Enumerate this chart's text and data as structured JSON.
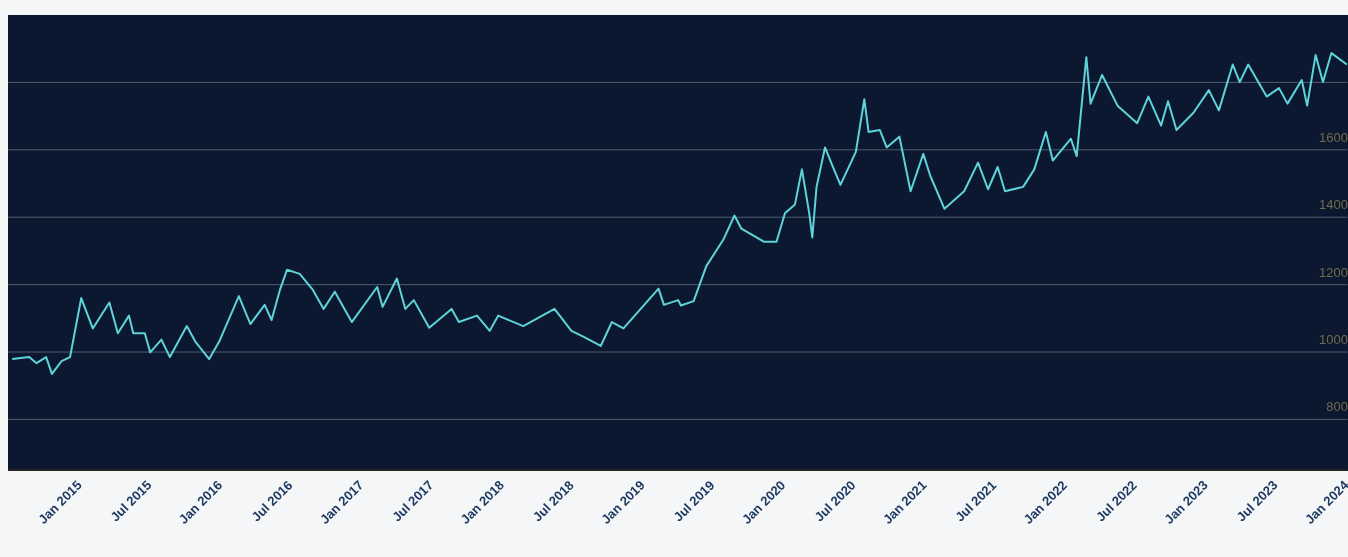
{
  "chart_data": {
    "type": "line",
    "x": [
      "2014-07-13",
      "2014-08-26",
      "2014-09-14",
      "2014-10-09",
      "2014-10-24",
      "2014-11-18",
      "2014-12-10",
      "2015-01-08",
      "2015-02-07",
      "2015-03-22",
      "2015-04-13",
      "2015-05-12",
      "2015-05-23",
      "2015-06-22",
      "2015-07-06",
      "2015-08-04",
      "2015-08-26",
      "2015-10-09",
      "2015-10-31",
      "2015-12-06",
      "2016-01-01",
      "2016-02-21",
      "2016-03-22",
      "2016-04-28",
      "2016-05-16",
      "2016-06-07",
      "2016-06-25",
      "2016-07-28",
      "2016-08-30",
      "2016-09-28",
      "2016-10-27",
      "2016-12-10",
      "2017-02-14",
      "2017-02-28",
      "2017-04-06",
      "2017-04-28",
      "2017-05-20",
      "2017-06-29",
      "2017-08-26",
      "2017-09-14",
      "2017-10-31",
      "2017-12-03",
      "2017-12-25",
      "2018-02-28",
      "2018-05-20",
      "2018-07-03",
      "2018-08-04",
      "2018-09-17",
      "2018-10-16",
      "2018-11-15",
      "2019-02-14",
      "2019-02-28",
      "2019-04-06",
      "2019-04-13",
      "2019-05-16",
      "2019-06-18",
      "2019-08-01",
      "2019-08-30",
      "2019-09-17",
      "2019-11-15",
      "2019-12-17",
      "2020-01-08",
      "2020-02-03",
      "2020-02-21",
      "2020-03-11",
      "2020-03-19",
      "2020-03-30",
      "2020-04-21",
      "2020-05-09",
      "2020-05-31",
      "2020-07-10",
      "2020-08-01",
      "2020-08-12",
      "2020-09-10",
      "2020-09-28",
      "2020-10-31",
      "2020-11-29",
      "2021-01-01",
      "2021-01-19",
      "2021-02-25",
      "2021-04-17",
      "2021-05-23",
      "2021-06-18",
      "2021-07-13",
      "2021-08-01",
      "2021-09-17",
      "2021-10-16",
      "2021-11-15",
      "2021-12-03",
      "2022-01-19",
      "2022-02-03",
      "2022-02-28",
      "2022-03-11",
      "2022-04-10",
      "2022-05-20",
      "2022-07-10",
      "2022-08-08",
      "2022-09-10",
      "2022-09-28",
      "2022-10-20",
      "2022-12-03",
      "2023-01-12",
      "2023-02-07",
      "2023-03-15",
      "2023-04-02",
      "2023-04-24",
      "2023-06-11",
      "2023-07-13",
      "2023-08-04",
      "2023-09-10",
      "2023-09-24",
      "2023-10-16",
      "2023-11-04",
      "2023-11-26",
      "2024-01-05"
    ],
    "values": [
      979,
      985,
      967,
      985,
      935,
      973,
      985,
      1160,
      1070,
      1147,
      1056,
      1108,
      1056,
      1056,
      999,
      1037,
      985,
      1077,
      1031,
      979,
      1031,
      1166,
      1083,
      1140,
      1095,
      1186,
      1244,
      1232,
      1186,
      1128,
      1179,
      1089,
      1193,
      1134,
      1218,
      1128,
      1154,
      1072,
      1128,
      1089,
      1108,
      1063,
      1108,
      1077,
      1128,
      1063,
      1045,
      1018,
      1089,
      1070,
      1188,
      1140,
      1154,
      1138,
      1151,
      1255,
      1333,
      1405,
      1366,
      1327,
      1327,
      1412,
      1438,
      1542,
      1412,
      1340,
      1490,
      1607,
      1556,
      1496,
      1594,
      1750,
      1653,
      1659,
      1607,
      1639,
      1477,
      1588,
      1523,
      1425,
      1477,
      1562,
      1483,
      1549,
      1477,
      1490,
      1542,
      1653,
      1568,
      1633,
      1581,
      1875,
      1737,
      1822,
      1731,
      1679,
      1758,
      1672,
      1744,
      1659,
      1710,
      1777,
      1717,
      1853,
      1801,
      1853,
      1758,
      1783,
      1737,
      1807,
      1731,
      1881,
      1801,
      1887,
      1853
    ],
    "color": "#5ed3d8",
    "xlim": [
      "2014-07-02",
      "2024-01-08"
    ],
    "xticks": [
      {
        "value": "2015-01-01",
        "label": "Jan 2015"
      },
      {
        "value": "2015-07-01",
        "label": "Jul 2015"
      },
      {
        "value": "2016-01-01",
        "label": "Jan 2016"
      },
      {
        "value": "2016-07-01",
        "label": "Jul 2016"
      },
      {
        "value": "2017-01-01",
        "label": "Jan 2017"
      },
      {
        "value": "2017-07-01",
        "label": "Jul 2017"
      },
      {
        "value": "2018-01-01",
        "label": "Jan 2018"
      },
      {
        "value": "2018-07-01",
        "label": "Jul 2018"
      },
      {
        "value": "2019-01-01",
        "label": "Jan 2019"
      },
      {
        "value": "2019-07-01",
        "label": "Jul 2019"
      },
      {
        "value": "2020-01-01",
        "label": "Jan 2020"
      },
      {
        "value": "2020-07-01",
        "label": "Jul 2020"
      },
      {
        "value": "2021-01-01",
        "label": "Jan 2021"
      },
      {
        "value": "2021-07-01",
        "label": "Jul 2021"
      },
      {
        "value": "2022-01-01",
        "label": "Jan 2022"
      },
      {
        "value": "2022-07-01",
        "label": "Jul 2022"
      },
      {
        "value": "2023-01-01",
        "label": "Jan 2023"
      },
      {
        "value": "2023-07-01",
        "label": "Jul 2023"
      },
      {
        "value": "2024-01-01",
        "label": "Jan 2024"
      }
    ],
    "ylim": [
      650,
      2000
    ],
    "yticks": [
      800,
      1000,
      1200,
      1400,
      1600,
      {
        "value": 1800,
        "label": null
      }
    ],
    "grid": "y"
  }
}
